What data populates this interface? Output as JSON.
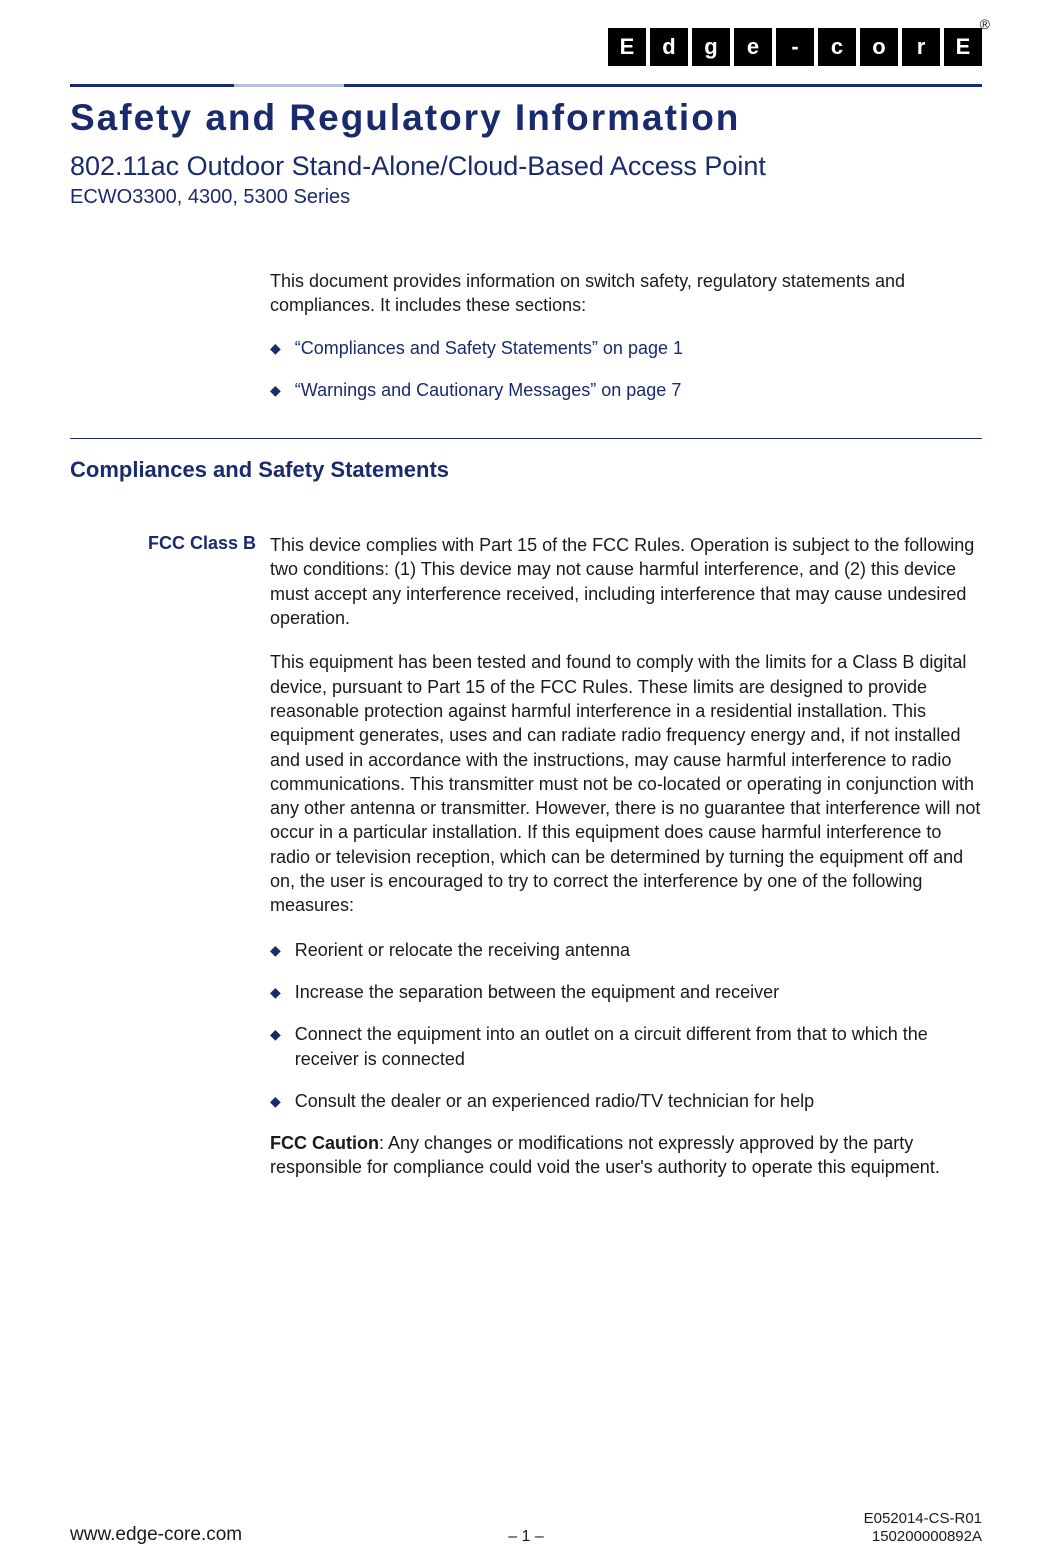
{
  "header": {
    "registered": "®",
    "logo_letters": [
      "E",
      "d",
      "g",
      "e",
      "-",
      "c",
      "o",
      "r",
      "E"
    ],
    "main_title": "Safety and Regulatory Information",
    "subtitle": "802.11ac Outdoor Stand-Alone/Cloud-Based Access Point",
    "models": "ECWO3300, 4300, 5300 Series"
  },
  "intro": {
    "para1": "This document provides information on switch safety, regulatory statements and compliances. It includes these sections:",
    "links": [
      "“Compliances and Safety Statements” on page 1",
      "“Warnings and Cautionary Messages” on page 7"
    ]
  },
  "section1": {
    "heading": "Compliances and Safety Statements",
    "fcc_label": "FCC Class B",
    "fcc_para1": "This device complies with Part 15 of the FCC Rules. Operation is subject to the following two conditions: (1) This device may not cause harmful interference, and (2) this device must accept any interference received, including interference that may cause undesired operation.",
    "fcc_para2": "This equipment has been tested and found to comply with the limits for a Class B digital device, pursuant to Part 15 of the FCC Rules. These limits are designed to provide reasonable protection against harmful interference in a residential installation. This equipment generates, uses and can radiate radio frequency energy and, if not installed and used in accordance with the instructions, may cause harmful interference to radio communications. This transmitter must not be co-located or operating in conjunction with any other antenna or transmitter. However, there is no guarantee that interference will not occur in a particular installation. If this equipment does cause harmful interference to radio or television reception, which can be determined by turning the equipment off and on, the user is encouraged to try to correct the interference by one of the following measures:",
    "fcc_bullets": [
      "Reorient or relocate the receiving antenna",
      "Increase the separation between the equipment and receiver",
      "Connect the equipment into an outlet on a circuit different from that to which the receiver is connected",
      "Consult the dealer or an experienced radio/TV technician for help"
    ],
    "fcc_caution_label": "FCC Caution",
    "fcc_caution_text": ": Any changes or modifications not expressly approved by the party responsible for compliance could void the user's authority to operate this equipment."
  },
  "footer": {
    "url": "www.edge-core.com",
    "page": "– 1 –",
    "code1": "E052014-CS-R01",
    "code2": "150200000892A"
  },
  "colors": {
    "accent": "#1a2b6d",
    "text": "#1a1a1a",
    "rule_light": "#b8bfda"
  }
}
